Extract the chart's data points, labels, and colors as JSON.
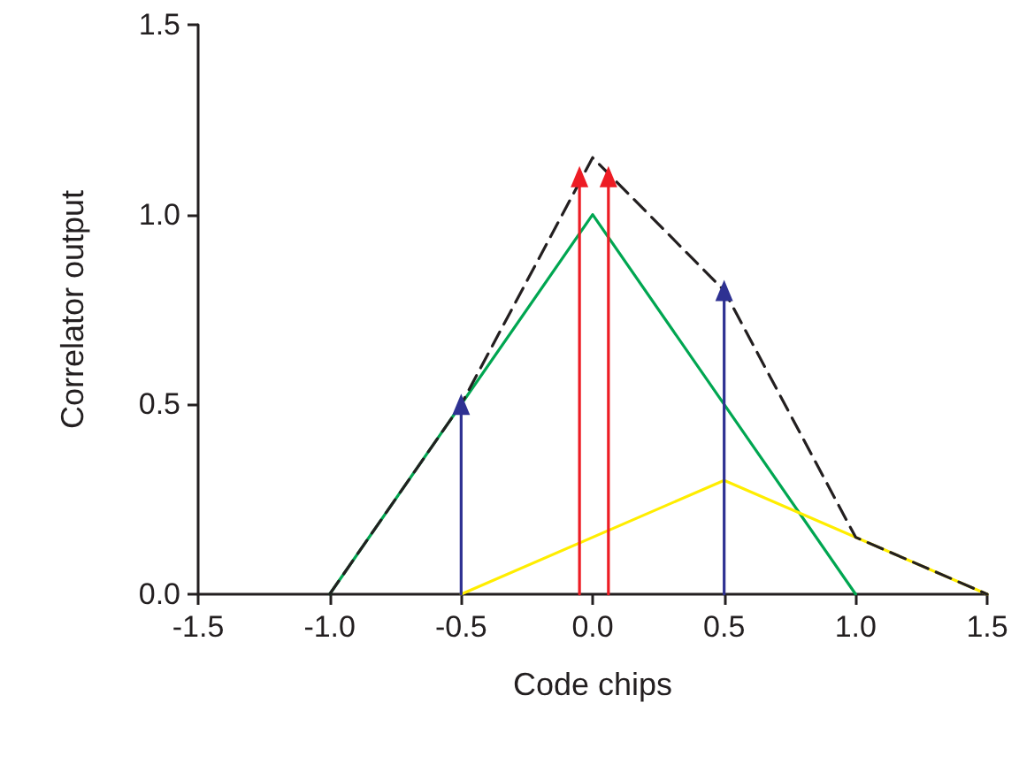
{
  "chart_data": {
    "type": "line",
    "xlabel": "Code chips",
    "ylabel": "Correlator output",
    "xlim": [
      -1.5,
      1.5
    ],
    "ylim": [
      0,
      1.5
    ],
    "xticks": [
      {
        "value": -1.5,
        "label": "-1.5"
      },
      {
        "value": -1,
        "label": "-1.0"
      },
      {
        "value": -0.5,
        "label": "-0.5"
      },
      {
        "value": 0,
        "label": "0.0"
      },
      {
        "value": 0.5,
        "label": "0.5"
      },
      {
        "value": 1,
        "label": "1.0"
      },
      {
        "value": 1.5,
        "label": "1.5"
      }
    ],
    "yticks": [
      {
        "value": 0,
        "label": "0.0"
      },
      {
        "value": 0.5,
        "label": "0.5"
      },
      {
        "value": 1,
        "label": "1.0"
      },
      {
        "value": 1.5,
        "label": "1.5"
      }
    ],
    "grid": false,
    "marker": "none",
    "series": [
      {
        "color": "#00a651",
        "x": [
          -1,
          0,
          1
        ],
        "values": [
          0,
          1,
          0
        ],
        "line_style": "solid"
      },
      {
        "color": "#ffed00",
        "x": [
          -0.5,
          0.5,
          1.5
        ],
        "values": [
          0,
          0.3,
          0
        ],
        "line_style": "solid"
      },
      {
        "color": "#231f20",
        "x": [
          -1,
          -0.5,
          0,
          0.5,
          1,
          1.5
        ],
        "values": [
          0,
          0.5,
          1.15,
          0.8,
          0.15,
          0
        ],
        "line_style": "dashed"
      },
      {
        "color": "#2e3192",
        "x": [
          -0.5,
          -0.5
        ],
        "values": [
          0,
          0.5
        ],
        "line_style": "solid",
        "marker": "triangle"
      },
      {
        "color": "#2e3192",
        "x": [
          0.5,
          0.5
        ],
        "values": [
          0,
          0.8
        ],
        "line_style": "solid",
        "marker": "triangle"
      },
      {
        "color": "#ed1c24",
        "x": [
          -0.05,
          -0.05
        ],
        "values": [
          0,
          1.1
        ],
        "line_style": "solid",
        "marker": "triangle"
      },
      {
        "color": "#ed1c24",
        "x": [
          0.06,
          0.06
        ],
        "values": [
          0,
          1.1
        ],
        "line_style": "solid",
        "marker": "triangle"
      }
    ]
  }
}
